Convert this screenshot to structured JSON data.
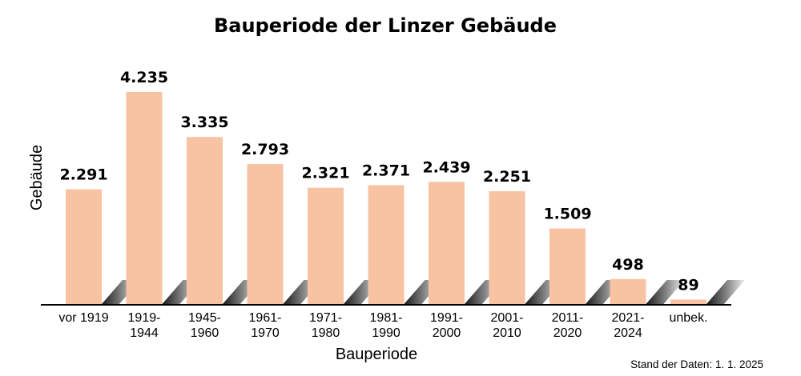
{
  "chart_data": {
    "type": "bar",
    "title": "Bauperiode der Linzer Gebäude",
    "xlabel": "Bauperiode",
    "ylabel": "Gebäude",
    "categories": [
      [
        "vor 1919"
      ],
      [
        "1919-",
        "1944"
      ],
      [
        "1945-",
        "1960"
      ],
      [
        "1961-",
        "1970"
      ],
      [
        "1971-",
        "1980"
      ],
      [
        "1981-",
        "1990"
      ],
      [
        "1991-",
        "2000"
      ],
      [
        "2001-",
        "2010"
      ],
      [
        "2011-",
        "2020"
      ],
      [
        "2021-",
        "2024"
      ],
      [
        "unbek."
      ]
    ],
    "values": [
      2291,
      4235,
      3335,
      2793,
      2321,
      2371,
      2439,
      2251,
      1509,
      498,
      89
    ],
    "value_labels": [
      "2.291",
      "4.235",
      "3.335",
      "2.793",
      "2.321",
      "2.371",
      "2.439",
      "2.251",
      "1.509",
      "498",
      "89"
    ],
    "ylim": [
      0,
      4600
    ],
    "grid": false,
    "legend": "none",
    "bar_color": "#f7c3a3",
    "axis_color": "#000000"
  },
  "footnote": "Stand der Daten: 1. 1. 2025"
}
